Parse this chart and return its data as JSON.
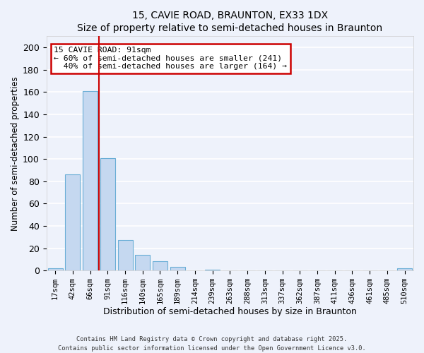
{
  "title": "15, CAVIE ROAD, BRAUNTON, EX33 1DX",
  "subtitle": "Size of property relative to semi-detached houses in Braunton",
  "xlabel": "Distribution of semi-detached houses by size in Braunton",
  "ylabel": "Number of semi-detached properties",
  "bar_labels": [
    "17sqm",
    "42sqm",
    "66sqm",
    "91sqm",
    "116sqm",
    "140sqm",
    "165sqm",
    "189sqm",
    "214sqm",
    "239sqm",
    "263sqm",
    "288sqm",
    "313sqm",
    "337sqm",
    "362sqm",
    "387sqm",
    "411sqm",
    "436sqm",
    "461sqm",
    "485sqm",
    "510sqm"
  ],
  "bar_values": [
    2,
    86,
    161,
    101,
    27,
    14,
    8,
    3,
    0,
    1,
    0,
    0,
    0,
    0,
    0,
    0,
    0,
    0,
    0,
    0,
    2
  ],
  "bar_color": "#c5d8f0",
  "bar_edge_color": "#6aaed6",
  "vline_color": "#cc0000",
  "annotation_title": "15 CAVIE ROAD: 91sqm",
  "annotation_line1": "← 60% of semi-detached houses are smaller (241)",
  "annotation_line2": "  40% of semi-detached houses are larger (164) →",
  "annotation_box_color": "#ffffff",
  "annotation_box_edge": "#cc0000",
  "ylim": [
    0,
    210
  ],
  "yticks": [
    0,
    20,
    40,
    60,
    80,
    100,
    120,
    140,
    160,
    180,
    200
  ],
  "footer1": "Contains HM Land Registry data © Crown copyright and database right 2025.",
  "footer2": "Contains public sector information licensed under the Open Government Licence v3.0.",
  "bg_color": "#eef2fb",
  "grid_color": "#ffffff",
  "plot_bg_color": "#eef2fb"
}
